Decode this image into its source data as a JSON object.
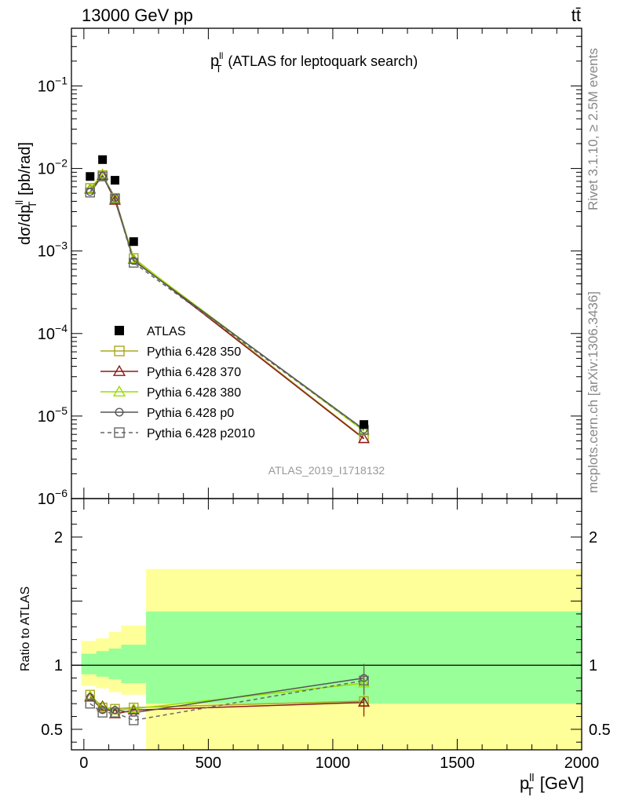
{
  "header": {
    "left": "13000 GeV pp",
    "right": "tt̄"
  },
  "side_labels": {
    "rivet": "Rivet 3.1.10, ≥ 2.5M events",
    "mcplots": "mcplots.cern.ch [arXiv:1306.3436]"
  },
  "chart_data": {
    "type": "line",
    "title": "(ATLAS for leptoquark search)",
    "title_var": "p",
    "title_sup": "ll",
    "title_sub": "T",
    "analysis_id": "ATLAS_2019_I1718132",
    "main_panel": {
      "ylabel": {
        "pre": "dσ/dp",
        "sup": "ll",
        "sub": "T",
        "post": " [pb/rad]"
      },
      "yscale": "log",
      "ylim": [
        1e-06,
        0.5
      ],
      "yticks": [
        {
          "v": 1e-06,
          "base": "10",
          "exp": "−6"
        },
        {
          "v": 1e-05,
          "base": "10",
          "exp": "−5"
        },
        {
          "v": 0.0001,
          "base": "10",
          "exp": "−4"
        },
        {
          "v": 0.001,
          "base": "10",
          "exp": "−3"
        },
        {
          "v": 0.01,
          "base": "10",
          "exp": "−2"
        },
        {
          "v": 0.1,
          "base": "10",
          "exp": "−1"
        }
      ],
      "legend_position": "left-middle"
    },
    "ratio_panel": {
      "ylabel": "Ratio to ATLAS",
      "ylim": [
        0.34,
        2.3
      ],
      "yticks": [
        "0.5",
        "1",
        "2"
      ],
      "bands": [
        {
          "x": [
            -10,
            50,
            100,
            150,
            250,
            2000
          ],
          "inner": [
            0.93,
            0.91,
            0.89,
            0.86,
            0.7,
            0.7
          ],
          "outer": [
            0.84,
            0.82,
            0.79,
            0.77,
            0.34,
            0.34
          ]
        },
        {
          "x": [
            -10,
            50,
            100,
            150,
            250,
            2000
          ],
          "inner": [
            1.09,
            1.11,
            1.13,
            1.16,
            1.42,
            1.42
          ],
          "outer": [
            1.19,
            1.21,
            1.26,
            1.31,
            1.75,
            1.75
          ]
        }
      ]
    },
    "xaxis": {
      "label": {
        "pre": "p",
        "sup": "ll",
        "sub": "T",
        "post": " [GeV]"
      },
      "xlim": [
        -50,
        2000
      ],
      "ticks": [
        "0",
        "500",
        "1000",
        "1500",
        "2000"
      ]
    },
    "x": [
      25,
      75,
      125,
      200,
      1125
    ],
    "data": {
      "name": "ATLAS",
      "values": [
        0.008,
        0.0128,
        0.0072,
        0.0013,
        7.9e-06
      ]
    },
    "series": [
      {
        "name": "Pythia 6.428 350",
        "color": "#a8a820",
        "marker": "square",
        "dash": false,
        "values": [
          0.0058,
          0.0083,
          0.0044,
          0.00082,
          5.4e-06
        ],
        "ratio": [
          0.77,
          0.67,
          0.66,
          0.67,
          0.72
        ]
      },
      {
        "name": "Pythia 6.428 370",
        "color": "#8b1a1a",
        "marker": "triangle",
        "dash": false,
        "values": [
          0.0056,
          0.0082,
          0.0041,
          0.00079,
          5.3e-06
        ],
        "ratio": [
          0.75,
          0.68,
          0.62,
          0.65,
          0.71
        ]
      },
      {
        "name": "Pythia 6.428 380",
        "color": "#99dd00",
        "marker": "triangle",
        "dash": false,
        "values": [
          0.0057,
          0.0085,
          0.0043,
          0.0008,
          6.6e-06
        ],
        "ratio": [
          0.76,
          0.67,
          0.65,
          0.66,
          0.86
        ]
      },
      {
        "name": "Pythia 6.428 p0",
        "color": "#555555",
        "marker": "circle",
        "dash": false,
        "values": [
          0.0052,
          0.0081,
          0.0044,
          0.00076,
          6.9e-06
        ],
        "ratio": [
          0.75,
          0.65,
          0.65,
          0.63,
          0.9
        ]
      },
      {
        "name": "Pythia 6.428 p2010",
        "color": "#666666",
        "marker": "square",
        "dash": true,
        "values": [
          0.0051,
          0.008,
          0.0043,
          0.00072,
          6.8e-06
        ],
        "ratio": [
          0.7,
          0.63,
          0.63,
          0.57,
          0.88
        ]
      }
    ]
  }
}
